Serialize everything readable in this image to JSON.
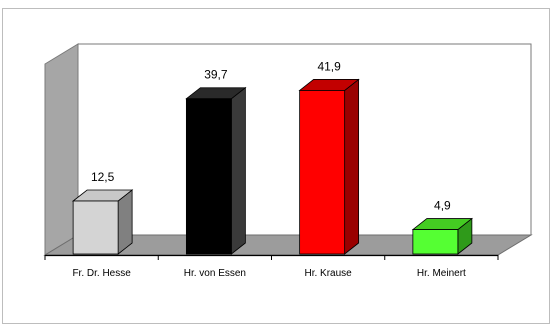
{
  "chart_data": {
    "type": "bar",
    "style": "3d",
    "categories": [
      "Fr. Dr. Hesse",
      "Hr. von Essen",
      "Hr. Krause",
      "Hr. Meinert"
    ],
    "values": [
      12.5,
      39.7,
      41.9,
      4.9
    ],
    "value_labels": [
      "12,5",
      "39,7",
      "41,9",
      "4,9"
    ],
    "bar_colors": [
      "#d4d4d4",
      "#000000",
      "#ff0000",
      "#55ff33"
    ],
    "side_colors": [
      "#808080",
      "#3a3a3a",
      "#9a0000",
      "#2f9a1a"
    ],
    "top_colors": [
      "#c8c8c8",
      "#2a2a2a",
      "#c20000",
      "#44cc22"
    ],
    "title": "",
    "xlabel": "",
    "ylabel": "",
    "ylim": [
      0,
      50
    ],
    "grid": false,
    "legend": "none"
  }
}
